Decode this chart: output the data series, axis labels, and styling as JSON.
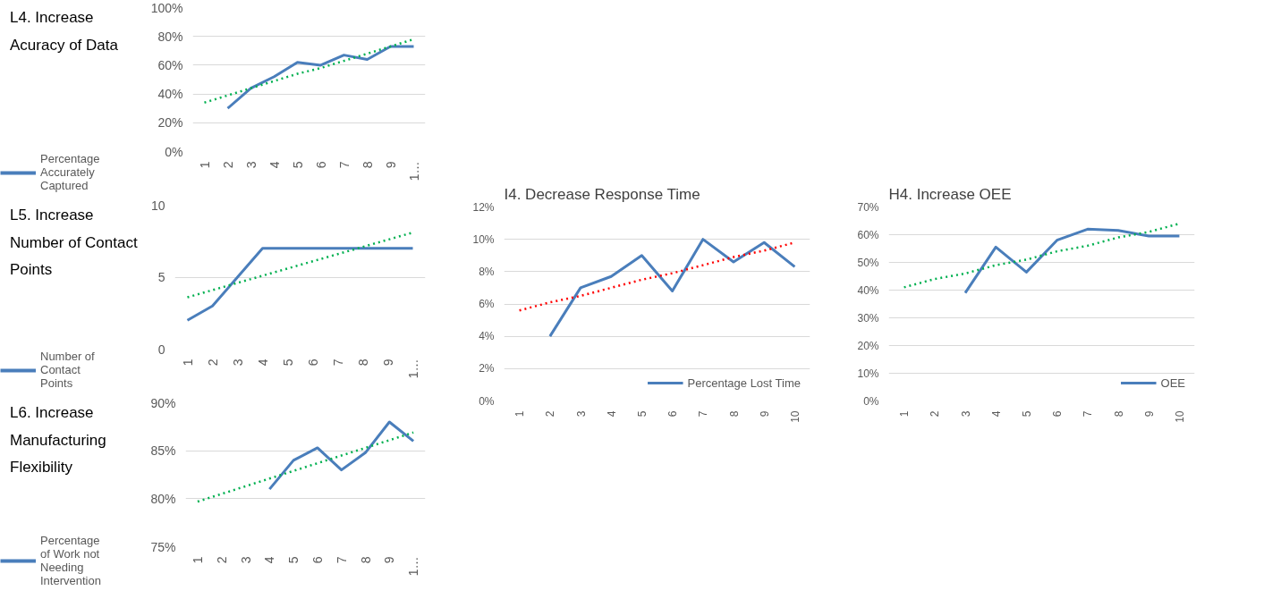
{
  "chart_data": [
    {
      "type": "line",
      "title": "L4. Increase Acuracy of Data",
      "categories": [
        "1",
        "2",
        "3",
        "4",
        "5",
        "6",
        "7",
        "8",
        "9",
        "1…"
      ],
      "ylim": [
        0,
        100
      ],
      "yticks": [
        {
          "value": 0,
          "label": "0%"
        },
        {
          "value": 20,
          "label": "20%"
        },
        {
          "value": 40,
          "label": "40%"
        },
        {
          "value": 60,
          "label": "60%"
        },
        {
          "value": 80,
          "label": "80%"
        },
        {
          "value": 100,
          "label": "100%"
        }
      ],
      "grid": "y",
      "legend": "left",
      "series": [
        {
          "name": "Percentage Accurately Captured",
          "color": "#4a7ebb",
          "line_style": "solid",
          "values": [
            null,
            30,
            44,
            52,
            62,
            60,
            67,
            64,
            73,
            73
          ]
        },
        {
          "type": "line",
          "color": "#00b050",
          "line_style": "dotted",
          "values": [
            34,
            39,
            44,
            49,
            54,
            58,
            63,
            68,
            73,
            78
          ]
        }
      ]
    },
    {
      "type": "line",
      "title": "L5. Increase Number of Contact Points",
      "categories": [
        "1",
        "2",
        "3",
        "4",
        "5",
        "6",
        "7",
        "8",
        "9",
        "1…"
      ],
      "ylim": [
        0,
        10
      ],
      "yticks": [
        0,
        5,
        10
      ],
      "grid": "y",
      "legend": "left",
      "series": [
        {
          "name": "Number of Contact Points",
          "color": "#4a7ebb",
          "line_style": "solid",
          "values": [
            2,
            3,
            5,
            7,
            7,
            7,
            7,
            7,
            7,
            7
          ]
        },
        {
          "type": "line",
          "color": "#00b050",
          "line_style": "dotted",
          "values": [
            3.6,
            4.1,
            4.6,
            5.1,
            5.6,
            6.1,
            6.6,
            7.1,
            7.6,
            8.1
          ]
        }
      ]
    },
    {
      "type": "line",
      "title": "L6. Increase Manufacturing Flexibility",
      "categories": [
        "1",
        "2",
        "3",
        "4",
        "5",
        "6",
        "7",
        "8",
        "9",
        "1…"
      ],
      "ylim": [
        75,
        90
      ],
      "yticks": [
        {
          "value": 75,
          "label": "75%"
        },
        {
          "value": 80,
          "label": "80%"
        },
        {
          "value": 85,
          "label": "85%"
        },
        {
          "value": 90,
          "label": "90%"
        }
      ],
      "grid": "y",
      "legend": "left",
      "series": [
        {
          "name": "Percentage of Work not Needing Intervention",
          "color": "#4a7ebb",
          "line_style": "solid",
          "values": [
            null,
            null,
            null,
            81,
            84,
            85.3,
            83,
            84.8,
            88,
            86
          ]
        },
        {
          "type": "line",
          "color": "#00b050",
          "line_style": "dotted",
          "values": [
            79.7,
            80.5,
            81.3,
            82.1,
            82.9,
            83.7,
            84.5,
            85.3,
            86.1,
            86.9
          ]
        }
      ]
    },
    {
      "type": "line",
      "title": "I4.  Decrease Response Time",
      "categories": [
        "1",
        "2",
        "3",
        "4",
        "5",
        "6",
        "7",
        "8",
        "9",
        "10"
      ],
      "ylim": [
        0,
        12
      ],
      "yticks": [
        {
          "value": 0,
          "label": "0%"
        },
        {
          "value": 2,
          "label": "2%"
        },
        {
          "value": 4,
          "label": "4%"
        },
        {
          "value": 6,
          "label": "6%"
        },
        {
          "value": 8,
          "label": "8%"
        },
        {
          "value": 10,
          "label": "10%"
        },
        {
          "value": 12,
          "label": "12%"
        }
      ],
      "grid": "y",
      "legend": "bottom",
      "series": [
        {
          "name": "Percentage Lost Time",
          "color": "#4a7ebb",
          "line_style": "solid",
          "values": [
            null,
            4.0,
            7.0,
            7.7,
            9.0,
            6.8,
            10.0,
            8.6,
            9.8,
            8.3
          ]
        },
        {
          "type": "line",
          "color": "#ff0000",
          "line_style": "dotted",
          "values": [
            5.6,
            6.1,
            6.5,
            7.0,
            7.5,
            7.9,
            8.4,
            8.9,
            9.3,
            9.8
          ]
        }
      ]
    },
    {
      "type": "line",
      "title": "H4. Increase OEE",
      "categories": [
        "1",
        "2",
        "3",
        "4",
        "5",
        "6",
        "7",
        "8",
        "9",
        "10"
      ],
      "ylim": [
        0,
        70
      ],
      "yticks": [
        {
          "value": 0,
          "label": "0%"
        },
        {
          "value": 10,
          "label": "10%"
        },
        {
          "value": 20,
          "label": "20%"
        },
        {
          "value": 30,
          "label": "30%"
        },
        {
          "value": 40,
          "label": "40%"
        },
        {
          "value": 50,
          "label": "50%"
        },
        {
          "value": 60,
          "label": "60%"
        },
        {
          "value": 70,
          "label": "70%"
        }
      ],
      "grid": "y",
      "legend": "bottom",
      "series": [
        {
          "name": "OEE",
          "color": "#4a7ebb",
          "line_style": "solid",
          "values": [
            null,
            null,
            39,
            55.5,
            46.5,
            58,
            62,
            61.5,
            59.5,
            59.5
          ]
        },
        {
          "type": "line",
          "color": "#00b050",
          "line_style": "dotted",
          "values": [
            41,
            44,
            46,
            49,
            51,
            54,
            56,
            59,
            61,
            64
          ]
        }
      ]
    }
  ]
}
